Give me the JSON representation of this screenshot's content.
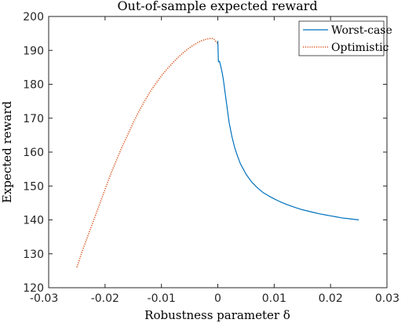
{
  "chart_data": {
    "type": "line",
    "title": "Out-of-sample expected reward",
    "xlabel": "Robustness parameter δ",
    "ylabel": "Expected reward",
    "xlim": [
      -0.03,
      0.03
    ],
    "ylim": [
      120,
      200
    ],
    "xticks": [
      -0.03,
      -0.02,
      -0.01,
      0,
      0.01,
      0.02,
      0.03
    ],
    "xtick_labels": [
      "-0.03",
      "-0.02",
      "-0.01",
      "0",
      "0.01",
      "0.02",
      "0.03"
    ],
    "yticks": [
      120,
      130,
      140,
      150,
      160,
      170,
      180,
      190,
      200
    ],
    "ytick_labels": [
      "120",
      "130",
      "140",
      "150",
      "160",
      "170",
      "180",
      "190",
      "200"
    ],
    "grid": false,
    "legend_position": "top-right",
    "series": [
      {
        "name": "Worst-case",
        "color": "#0072BD",
        "style": "solid",
        "x": [
          0.0,
          0.0001,
          0.0002,
          0.0003,
          0.0005,
          0.0008,
          0.001,
          0.0015,
          0.002,
          0.0025,
          0.003,
          0.0035,
          0.004,
          0.005,
          0.006,
          0.007,
          0.008,
          0.009,
          0.01,
          0.011,
          0.012,
          0.013,
          0.014,
          0.015,
          0.016,
          0.017,
          0.018,
          0.019,
          0.02,
          0.021,
          0.022,
          0.023,
          0.024,
          0.025
        ],
        "y": [
          192.8,
          186.8,
          186.6,
          186.8,
          185.5,
          183.2,
          181.2,
          175.0,
          168.8,
          164.6,
          161.3,
          158.8,
          156.6,
          153.5,
          151.2,
          149.5,
          148.1,
          147.1,
          146.2,
          145.4,
          144.7,
          144.1,
          143.5,
          143.0,
          142.6,
          142.2,
          141.8,
          141.5,
          141.2,
          140.9,
          140.6,
          140.4,
          140.2,
          140.0
        ]
      },
      {
        "name": "Optimistic",
        "color": "#D95319",
        "style": "dotted",
        "x": [
          -0.025,
          -0.024,
          -0.023,
          -0.022,
          -0.021,
          -0.02,
          -0.019,
          -0.018,
          -0.017,
          -0.016,
          -0.015,
          -0.014,
          -0.013,
          -0.012,
          -0.011,
          -0.01,
          -0.009,
          -0.008,
          -0.007,
          -0.006,
          -0.005,
          -0.004,
          -0.003,
          -0.002,
          -0.0015,
          -0.001,
          -0.0007,
          -0.0005,
          -0.0003,
          -0.0001,
          0.0
        ],
        "y": [
          126.0,
          131.0,
          135.5,
          140.0,
          144.5,
          149.0,
          153.5,
          157.5,
          161.5,
          165.0,
          168.7,
          172.0,
          175.0,
          177.8,
          180.2,
          182.5,
          184.5,
          186.3,
          188.0,
          189.5,
          190.8,
          191.9,
          192.8,
          193.3,
          193.5,
          193.5,
          193.3,
          193.0,
          192.5,
          192.2,
          192.1
        ]
      }
    ]
  }
}
